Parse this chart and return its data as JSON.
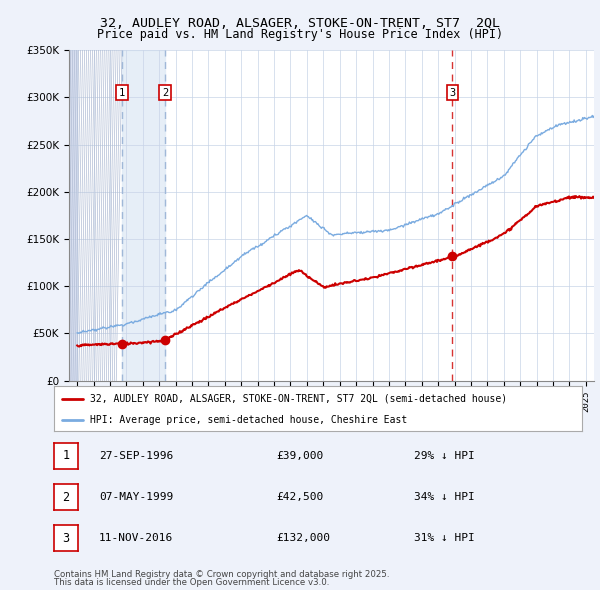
{
  "title": "32, AUDLEY ROAD, ALSAGER, STOKE-ON-TRENT, ST7  2QL",
  "subtitle": "Price paid vs. HM Land Registry's House Price Index (HPI)",
  "legend_line1": "32, AUDLEY ROAD, ALSAGER, STOKE-ON-TRENT, ST7 2QL (semi-detached house)",
  "legend_line2": "HPI: Average price, semi-detached house, Cheshire East",
  "transactions": [
    {
      "label": "1",
      "date": "27-SEP-1996",
      "price": 39000,
      "pct": "29% ↓ HPI",
      "year": 1996.74
    },
    {
      "label": "2",
      "date": "07-MAY-1999",
      "price": 42500,
      "pct": "34% ↓ HPI",
      "year": 1999.35
    },
    {
      "label": "3",
      "date": "11-NOV-2016",
      "price": 132000,
      "pct": "31% ↓ HPI",
      "year": 2016.86
    }
  ],
  "footer_line1": "Contains HM Land Registry data © Crown copyright and database right 2025.",
  "footer_line2": "This data is licensed under the Open Government Licence v3.0.",
  "ylim": [
    0,
    350000
  ],
  "xlim": [
    1993.5,
    2025.5
  ],
  "background_color": "#eef2fa",
  "plot_bg_color": "#ffffff",
  "red_color": "#cc0000",
  "blue_color": "#7aabe0",
  "vline_color_12": "#a0b8d8",
  "vline_color_3": "#cc0000",
  "hatch_bg": "#d8dff0",
  "shade_color": "#dce8f5"
}
